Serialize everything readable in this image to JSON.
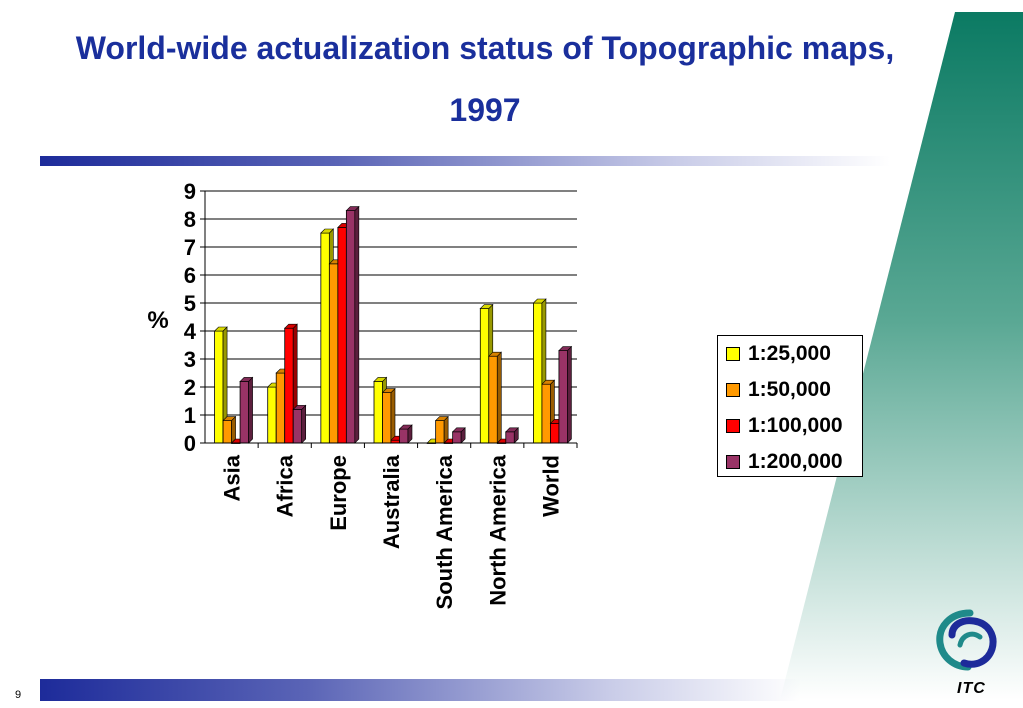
{
  "slide": {
    "title_line1": "World-wide actualization status of Topographic maps,",
    "title_line2": "1997",
    "page_number": "9",
    "logo_text": "ITC"
  },
  "colors": {
    "title": "#1a2f9c",
    "bar_dark_blue": "#1d2b9a",
    "wedge_top": "#0b7a63",
    "wedge_bottom": "#e8f3ef"
  },
  "chart_data": {
    "type": "bar",
    "title": "",
    "xlabel": "",
    "ylabel": "%",
    "ylim": [
      0,
      9
    ],
    "yticks": [
      "0",
      "1",
      "2",
      "3",
      "4",
      "5",
      "6",
      "7",
      "8",
      "9"
    ],
    "grid": true,
    "legend_position": "right",
    "categories": [
      "Asia",
      "Africa",
      "Europe",
      "Australia",
      "South America",
      "North America",
      "World"
    ],
    "series": [
      {
        "name": "1:25,000",
        "color": "#ffff00",
        "values": [
          4.0,
          2.0,
          7.5,
          2.2,
          0.0,
          4.8,
          5.0
        ]
      },
      {
        "name": "1:50,000",
        "color": "#ff9900",
        "values": [
          0.8,
          2.5,
          6.4,
          1.8,
          0.8,
          3.1,
          2.1
        ]
      },
      {
        "name": "1:100,000",
        "color": "#ff0000",
        "values": [
          0.0,
          4.1,
          7.7,
          0.1,
          0.0,
          0.0,
          0.7
        ]
      },
      {
        "name": "1:200,000",
        "color": "#993366",
        "values": [
          2.2,
          1.2,
          8.3,
          0.5,
          0.4,
          0.4,
          3.3
        ]
      }
    ]
  }
}
